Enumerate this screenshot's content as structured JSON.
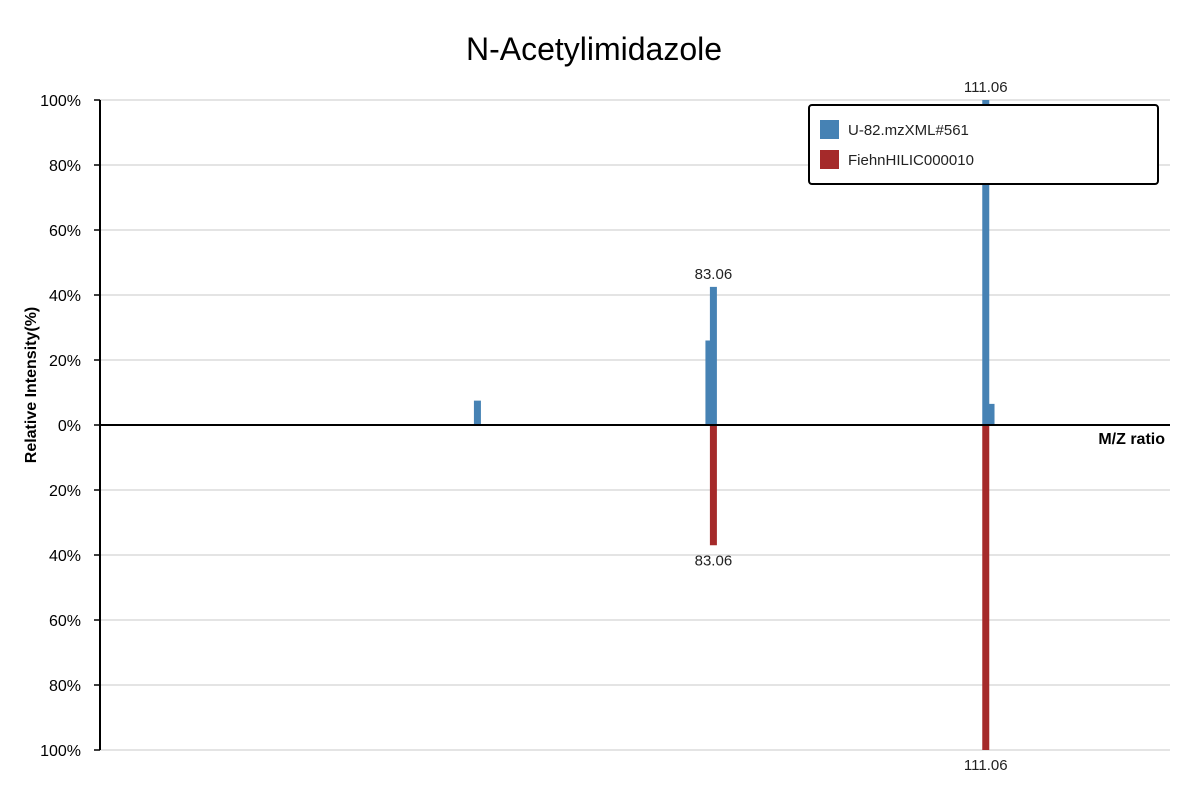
{
  "chart_data": {
    "type": "bar",
    "title": "N-Acetylimidazole",
    "xlabel": "M/Z ratio",
    "ylabel": "Relative Intensity(%)",
    "xlim": [
      20,
      130
    ],
    "ylim": [
      -100,
      100
    ],
    "y_ticks": [
      {
        "value": 100,
        "label": "100%"
      },
      {
        "value": 80,
        "label": "80%"
      },
      {
        "value": 60,
        "label": "60%"
      },
      {
        "value": 40,
        "label": "40%"
      },
      {
        "value": 20,
        "label": "20%"
      },
      {
        "value": 0,
        "label": "0%"
      },
      {
        "value": -20,
        "label": "20%"
      },
      {
        "value": -40,
        "label": "40%"
      },
      {
        "value": -60,
        "label": "60%"
      },
      {
        "value": -80,
        "label": "80%"
      },
      {
        "value": -100,
        "label": "100%"
      }
    ],
    "grid": true,
    "legend_position": "top-right",
    "series": [
      {
        "name": "U-82.mzXML#561",
        "color": "#4682b4",
        "direction": "up",
        "peaks": [
          {
            "mz": 58.8,
            "intensity": 7.5
          },
          {
            "mz": 82.6,
            "intensity": 26
          },
          {
            "mz": 83.06,
            "intensity": 42.5,
            "label": "83.06"
          },
          {
            "mz": 111.06,
            "intensity": 100,
            "label": "111.06"
          },
          {
            "mz": 111.6,
            "intensity": 6.5
          }
        ]
      },
      {
        "name": "FiehnHILIC000010",
        "color": "#a52a2a",
        "direction": "down",
        "peaks": [
          {
            "mz": 83.06,
            "intensity": 37,
            "label": "83.06"
          },
          {
            "mz": 111.06,
            "intensity": 100,
            "label": "111.06"
          }
        ]
      }
    ]
  }
}
